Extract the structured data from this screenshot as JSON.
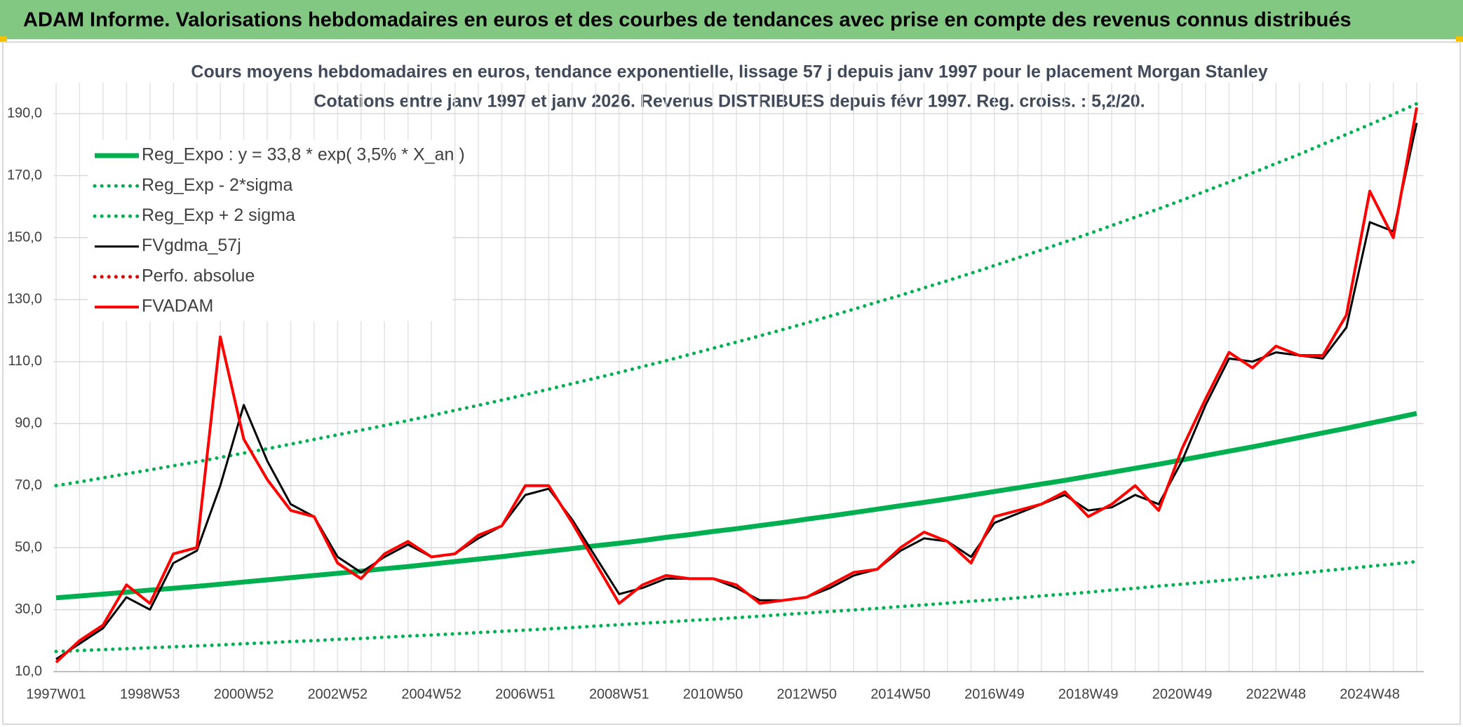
{
  "header": {
    "title": "ADAM Informe. Valorisations hebdomadaires en euros et des courbes de tendances avec prise en compte des revenus connus distribués"
  },
  "chart_data": {
    "type": "line",
    "title": "Cours moyens hebdomadaires en euros, tendance exponentielle, lissage 57 j depuis janv 1997 pour le placement Morgan Stanley",
    "subtitle": "Cotations entre janv 1997 et janv 2026. Revenus DISTRIBUES depuis févr 1997. Reg. croiss. : 5,2/20.",
    "categories": [
      "1997W01",
      null,
      null,
      null,
      "1998W53",
      null,
      null,
      null,
      "2000W52",
      null,
      null,
      null,
      "2002W52",
      null,
      null,
      null,
      "2004W52",
      null,
      null,
      null,
      "2006W51",
      null,
      null,
      null,
      "2008W51",
      null,
      null,
      null,
      "2010W50",
      null,
      null,
      null,
      "2012W50",
      null,
      null,
      null,
      "2014W50",
      null,
      null,
      null,
      "2016W49",
      null,
      null,
      null,
      "2018W49",
      null,
      null,
      null,
      "2020W49",
      null,
      null,
      null,
      "2022W48",
      null,
      null,
      null,
      "2024W48",
      null,
      null
    ],
    "ylim": [
      10,
      195
    ],
    "yticks": [
      {
        "value": 10,
        "label": "10,0"
      },
      {
        "value": 30,
        "label": "30,0"
      },
      {
        "value": 50,
        "label": "50,0"
      },
      {
        "value": 70,
        "label": "70,0"
      },
      {
        "value": 90,
        "label": "90,0"
      },
      {
        "value": 110,
        "label": "110,0"
      },
      {
        "value": 130,
        "label": "130,0"
      },
      {
        "value": 150,
        "label": "150,0"
      },
      {
        "value": 170,
        "label": "170,0"
      },
      {
        "value": 190,
        "label": "190,0"
      }
    ],
    "grid": true,
    "legend": "upper left",
    "series": [
      {
        "name": "Reg_Expo : y = 33,8 * exp( 3,5% *  X_an )",
        "color": "#00b050",
        "style": "solid",
        "values": [
          33.8,
          34.4,
          35.0,
          35.6,
          36.3,
          36.9,
          37.5,
          38.2,
          38.9,
          39.6,
          40.3,
          41.0,
          41.7,
          42.4,
          43.2,
          43.9,
          44.7,
          45.5,
          46.3,
          47.1,
          48.0,
          48.8,
          49.7,
          50.6,
          51.4,
          52.3,
          53.3,
          54.2,
          55.2,
          56.1,
          57.1,
          58.1,
          59.2,
          60.2,
          61.3,
          62.4,
          63.5,
          64.6,
          65.7,
          66.9,
          68.1,
          69.3,
          70.5,
          71.7,
          73.0,
          74.3,
          75.6,
          76.9,
          78.3,
          79.7,
          81.1,
          82.5,
          84.0,
          85.5,
          87.0,
          88.5,
          90.1,
          91.7,
          93.3
        ]
      },
      {
        "name": "Reg_Exp - 2*sigma",
        "color": "#00b050",
        "style": "dotted",
        "values": [
          16.5,
          16.8,
          17.1,
          17.4,
          17.7,
          18.0,
          18.3,
          18.6,
          19.0,
          19.3,
          19.7,
          20.0,
          20.4,
          20.7,
          21.1,
          21.5,
          21.8,
          22.2,
          22.6,
          23.0,
          23.4,
          23.8,
          24.2,
          24.7,
          25.1,
          25.6,
          26.0,
          26.5,
          26.9,
          27.4,
          27.9,
          28.4,
          28.9,
          29.4,
          29.9,
          30.4,
          31.0,
          31.5,
          32.1,
          32.7,
          33.2,
          33.8,
          34.4,
          35.0,
          35.6,
          36.3,
          36.9,
          37.6,
          38.2,
          38.9,
          39.6,
          40.3,
          41.0,
          41.7,
          42.5,
          43.2,
          44.0,
          44.7,
          45.5
        ]
      },
      {
        "name": "Reg_Exp + 2 sigma",
        "color": "#00b050",
        "style": "dotted",
        "values": [
          70.0,
          71.2,
          72.5,
          73.8,
          75.1,
          76.4,
          77.7,
          79.1,
          80.5,
          81.9,
          83.4,
          84.9,
          86.4,
          87.9,
          89.4,
          91.0,
          92.6,
          94.3,
          95.9,
          97.6,
          99.3,
          101.1,
          102.9,
          104.7,
          106.5,
          108.4,
          110.3,
          112.3,
          114.3,
          116.3,
          118.3,
          120.4,
          122.5,
          124.7,
          126.9,
          129.2,
          131.4,
          133.8,
          136.1,
          138.5,
          141.0,
          143.5,
          146.0,
          148.6,
          151.2,
          153.9,
          156.6,
          159.3,
          162.1,
          165.0,
          167.9,
          170.9,
          173.9,
          176.9,
          180.1,
          183.3,
          186.5,
          189.8,
          193.2
        ]
      },
      {
        "name": "FVgdma_57j",
        "color": "#000000",
        "style": "solid",
        "values": [
          14,
          19,
          24,
          34,
          30,
          45,
          49,
          70,
          96,
          78,
          64,
          60,
          47,
          42,
          47,
          51,
          47,
          48,
          53,
          57,
          67,
          69,
          59,
          47,
          35,
          37,
          40,
          40,
          40,
          37,
          33,
          33,
          34,
          37,
          41,
          43,
          49,
          53,
          52,
          47,
          58,
          61,
          64,
          67,
          62,
          63,
          67,
          64,
          78,
          96,
          111,
          110,
          113,
          112,
          111,
          121,
          155,
          152,
          187
        ]
      },
      {
        "name": "Perfo. absolue",
        "color": "#e00000",
        "style": "dotted",
        "values": [
          null,
          null,
          null,
          null,
          null,
          null,
          null,
          null,
          null,
          null,
          null,
          null,
          null,
          null,
          null,
          null,
          null,
          null,
          null,
          null,
          null,
          null,
          null,
          null,
          null,
          null,
          null,
          null,
          null,
          null,
          null,
          null,
          null,
          null,
          null,
          null,
          null,
          null,
          null,
          null,
          null,
          null,
          null,
          null,
          null,
          null,
          null,
          null,
          null,
          null,
          null,
          null,
          null,
          null,
          null,
          null,
          null,
          null,
          null
        ]
      },
      {
        "name": "FVADAM",
        "color": "#ff0000",
        "style": "solid",
        "values": [
          13,
          20,
          25,
          38,
          32,
          48,
          50,
          118,
          85,
          72,
          62,
          60,
          45,
          40,
          48,
          52,
          47,
          48,
          54,
          57,
          70,
          70,
          58,
          45,
          32,
          38,
          41,
          40,
          40,
          38,
          32,
          33,
          34,
          38,
          42,
          43,
          50,
          55,
          52,
          45,
          60,
          62,
          64,
          68,
          60,
          64,
          70,
          62,
          82,
          98,
          113,
          108,
          115,
          112,
          112,
          125,
          165,
          150,
          192
        ]
      }
    ]
  }
}
